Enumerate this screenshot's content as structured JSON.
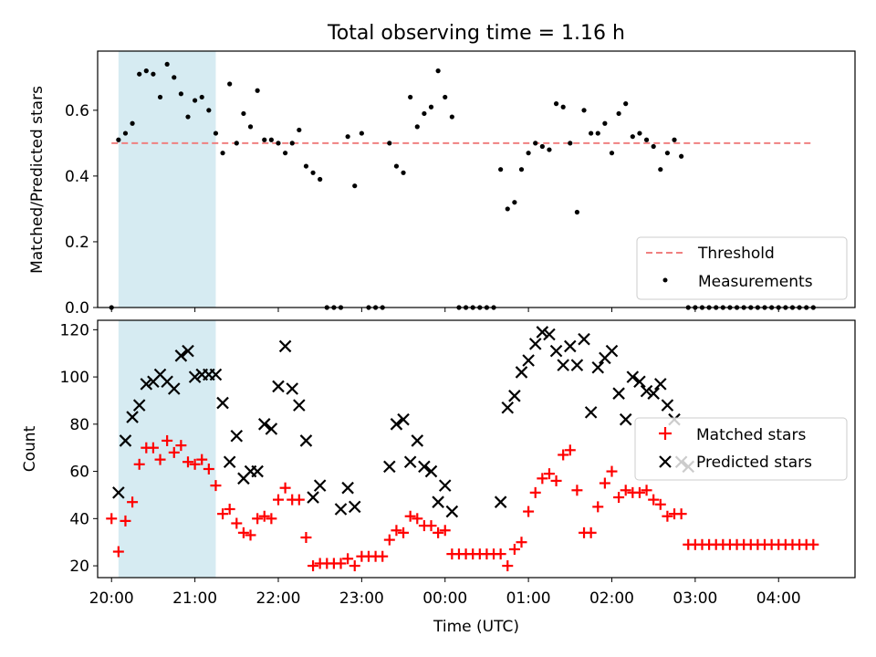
{
  "chart_data": [
    {
      "type": "scatter",
      "title": "Total observing time = 1.16 h",
      "ylabel": "Matched/Predicted stars",
      "xlabel": "",
      "xlim": [
        "19:50",
        "04:55"
      ],
      "ylim": [
        0,
        0.78
      ],
      "yticks": [
        "0.0",
        "0.2",
        "0.4",
        "0.6"
      ],
      "shaded_interval": [
        "20:05",
        "21:15"
      ],
      "threshold": {
        "name": "Threshold",
        "value": 0.5,
        "color": "#f08080"
      },
      "legend": "lower-right",
      "series": [
        {
          "name": "Measurements",
          "color": "#000000",
          "x": [
            "20:00",
            "20:05",
            "20:10",
            "20:15",
            "20:20",
            "20:25",
            "20:30",
            "20:35",
            "20:40",
            "20:45",
            "20:50",
            "20:55",
            "21:00",
            "21:05",
            "21:10",
            "21:15",
            "21:20",
            "21:25",
            "21:30",
            "21:35",
            "21:40",
            "21:45",
            "21:50",
            "21:55",
            "22:00",
            "22:05",
            "22:10",
            "22:15",
            "22:20",
            "22:25",
            "22:30",
            "22:35",
            "22:40",
            "22:45",
            "22:50",
            "22:55",
            "23:00",
            "23:05",
            "23:10",
            "23:15",
            "23:20",
            "23:25",
            "23:30",
            "23:35",
            "23:40",
            "23:45",
            "23:50",
            "23:55",
            "00:00",
            "00:05",
            "00:10",
            "00:15",
            "00:20",
            "00:25",
            "00:30",
            "00:35",
            "00:40",
            "00:45",
            "00:50",
            "00:55",
            "01:00",
            "01:05",
            "01:10",
            "01:15",
            "01:20",
            "01:25",
            "01:30",
            "01:35",
            "01:40",
            "01:45",
            "01:50",
            "01:55",
            "02:00",
            "02:05",
            "02:10",
            "02:15",
            "02:20",
            "02:25",
            "02:30",
            "02:35",
            "02:40",
            "02:45",
            "02:50",
            "02:55",
            "03:00",
            "03:05",
            "03:10",
            "03:15",
            "03:20",
            "03:25",
            "03:30",
            "03:35",
            "03:40",
            "03:45",
            "03:50",
            "03:55",
            "04:00",
            "04:05",
            "04:10",
            "04:15",
            "04:20",
            "04:25"
          ],
          "y": [
            0,
            0.51,
            0.53,
            0.56,
            0.71,
            0.72,
            0.71,
            0.64,
            0.74,
            0.7,
            0.65,
            0.58,
            0.63,
            0.64,
            0.6,
            0.53,
            0.47,
            0.68,
            0.5,
            0.59,
            0.55,
            0.66,
            0.51,
            0.51,
            0.5,
            0.47,
            0.5,
            0.54,
            0.43,
            0.41,
            0.39,
            0,
            0,
            0,
            0.52,
            0.37,
            0.53,
            0,
            0,
            0,
            0.5,
            0.43,
            0.41,
            0.64,
            0.55,
            0.59,
            0.61,
            0.72,
            0.64,
            0.58,
            0,
            0,
            0,
            0,
            0,
            0,
            0.42,
            0.3,
            0.32,
            0.42,
            0.47,
            0.5,
            0.49,
            0.48,
            0.62,
            0.61,
            0.5,
            0.29,
            0.6,
            0.53,
            0.53,
            0.56,
            0.47,
            0.59,
            0.62,
            0.52,
            0.53,
            0.51,
            0.49,
            0.42,
            0.47,
            0.51,
            0.46,
            0,
            0,
            0,
            0,
            0,
            0,
            0,
            0,
            0,
            0,
            0,
            0,
            0,
            0,
            0,
            0,
            0,
            0,
            0
          ]
        }
      ]
    },
    {
      "type": "scatter",
      "title": "",
      "xlabel": "Time (UTC)",
      "ylabel": "Count",
      "xlim": [
        "19:50",
        "04:55"
      ],
      "ylim": [
        15,
        124
      ],
      "yticks": [
        "20",
        "40",
        "60",
        "80",
        "100",
        "120"
      ],
      "xticks": [
        "20:00",
        "21:00",
        "22:00",
        "23:00",
        "00:00",
        "01:00",
        "02:00",
        "03:00",
        "04:00"
      ],
      "shaded_interval": [
        "20:05",
        "21:15"
      ],
      "legend": "center-right",
      "series": [
        {
          "name": "Matched stars",
          "marker": "+",
          "color": "#ff0000",
          "x": [
            "20:00",
            "20:05",
            "20:10",
            "20:15",
            "20:20",
            "20:25",
            "20:30",
            "20:35",
            "20:40",
            "20:45",
            "20:50",
            "20:55",
            "21:00",
            "21:05",
            "21:10",
            "21:15",
            "21:20",
            "21:25",
            "21:30",
            "21:35",
            "21:40",
            "21:45",
            "21:50",
            "21:55",
            "22:00",
            "22:05",
            "22:10",
            "22:15",
            "22:20",
            "22:25",
            "22:30",
            "22:35",
            "22:40",
            "22:45",
            "22:50",
            "22:55",
            "23:00",
            "23:05",
            "23:10",
            "23:15",
            "23:20",
            "23:25",
            "23:30",
            "23:35",
            "23:40",
            "23:45",
            "23:50",
            "23:55",
            "00:00",
            "00:05",
            "00:10",
            "00:15",
            "00:20",
            "00:25",
            "00:30",
            "00:35",
            "00:40",
            "00:45",
            "00:50",
            "00:55",
            "01:00",
            "01:05",
            "01:10",
            "01:15",
            "01:20",
            "01:25",
            "01:30",
            "01:35",
            "01:40",
            "01:45",
            "01:50",
            "01:55",
            "02:00",
            "02:05",
            "02:10",
            "02:15",
            "02:20",
            "02:25",
            "02:30",
            "02:35",
            "02:40",
            "02:45",
            "02:50",
            "02:55",
            "03:00",
            "03:05",
            "03:10",
            "03:15",
            "03:20",
            "03:25",
            "03:30",
            "03:35",
            "03:40",
            "03:45",
            "03:50",
            "03:55",
            "04:00",
            "04:05",
            "04:10",
            "04:15",
            "04:20",
            "04:25"
          ],
          "y": [
            40,
            26,
            39,
            47,
            63,
            70,
            70,
            65,
            73,
            68,
            71,
            64,
            63,
            65,
            61,
            54,
            42,
            44,
            38,
            34,
            33,
            40,
            41,
            40,
            48,
            53,
            48,
            48,
            32,
            20,
            21,
            21,
            21,
            21,
            23,
            20,
            24,
            24,
            24,
            24,
            31,
            35,
            34,
            41,
            40,
            37,
            37,
            34,
            35,
            25,
            25,
            25,
            25,
            25,
            25,
            25,
            25,
            20,
            27,
            30,
            43,
            51,
            57,
            59,
            56,
            67,
            69,
            52,
            34,
            34,
            45,
            55,
            60,
            49,
            52,
            51,
            51,
            52,
            48,
            46,
            41,
            42,
            42,
            29,
            29,
            29,
            29,
            29,
            29,
            29,
            29,
            29,
            29,
            29,
            29,
            29,
            29,
            29,
            29,
            29,
            29,
            29
          ]
        },
        {
          "name": "Predicted stars",
          "marker": "x",
          "color": "#000000",
          "x": [
            "20:05",
            "20:10",
            "20:15",
            "20:20",
            "20:25",
            "20:30",
            "20:35",
            "20:40",
            "20:45",
            "20:50",
            "20:55",
            "21:00",
            "21:05",
            "21:10",
            "21:15",
            "21:20",
            "21:25",
            "21:30",
            "21:35",
            "21:40",
            "21:45",
            "21:50",
            "21:55",
            "22:00",
            "22:05",
            "22:10",
            "22:15",
            "22:20",
            "22:25",
            "22:30",
            "22:45",
            "22:50",
            "22:55",
            "23:20",
            "23:25",
            "23:30",
            "23:35",
            "23:40",
            "23:45",
            "23:50",
            "23:55",
            "00:00",
            "00:05",
            "00:40",
            "00:45",
            "00:50",
            "00:55",
            "01:00",
            "01:05",
            "01:10",
            "01:15",
            "01:20",
            "01:25",
            "01:30",
            "01:35",
            "01:40",
            "01:45",
            "01:50",
            "01:55",
            "02:00",
            "02:05",
            "02:10",
            "02:15",
            "02:20",
            "02:25",
            "02:30",
            "02:35",
            "02:40",
            "02:45",
            "02:50",
            "02:55"
          ],
          "y": [
            51,
            73,
            83,
            88,
            97,
            98,
            101,
            98,
            95,
            109,
            111,
            100,
            101,
            101,
            101,
            89,
            64,
            75,
            57,
            60,
            60,
            80,
            78,
            96,
            113,
            95,
            88,
            73,
            49,
            54,
            44,
            53,
            45,
            62,
            80,
            82,
            64,
            73,
            62,
            60,
            47,
            54,
            43,
            47,
            87,
            92,
            102,
            107,
            114,
            119,
            118,
            111,
            105,
            113,
            105,
            116,
            85,
            104,
            108,
            111,
            93,
            82,
            100,
            98,
            94,
            93,
            97,
            88,
            82,
            64,
            62
          ]
        }
      ]
    }
  ]
}
